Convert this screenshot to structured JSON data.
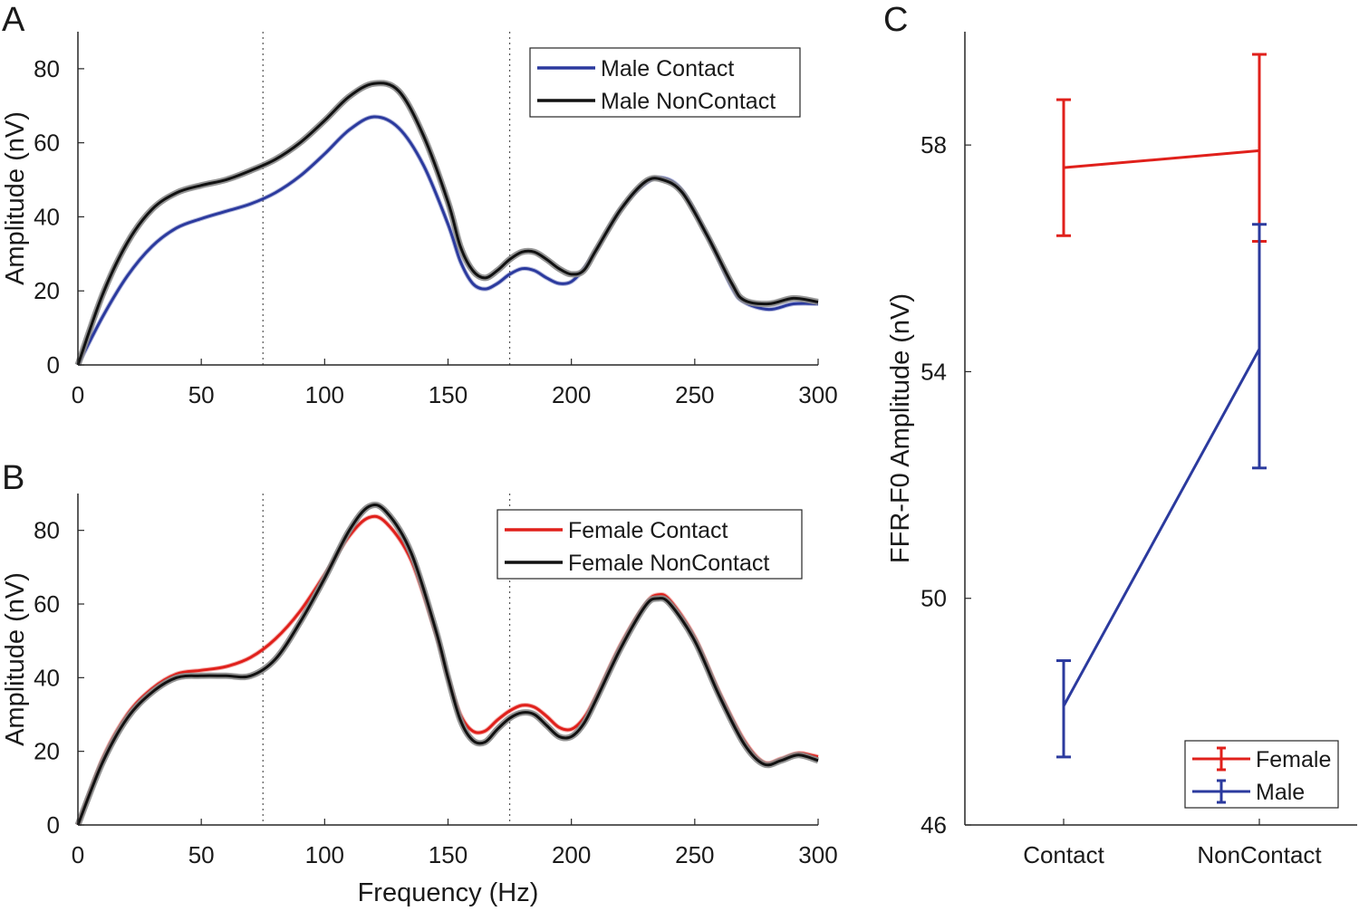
{
  "panels": {
    "a": {
      "letter": "A"
    },
    "b": {
      "letter": "B"
    },
    "c": {
      "letter": "C"
    }
  },
  "chart_data": [
    {
      "id": "a",
      "type": "line",
      "xlabel": "",
      "ylabel": "Amplitude (nV)",
      "xlim": [
        0,
        300
      ],
      "ylim": [
        0,
        90
      ],
      "xticks": [
        0,
        50,
        100,
        150,
        200,
        250,
        300
      ],
      "yticks": [
        0,
        20,
        40,
        60,
        80
      ],
      "vlines": [
        75,
        175
      ],
      "legend_position": "top-right",
      "series": [
        {
          "name": "Male Contact",
          "color": "#2b3a9e",
          "x": [
            0,
            10,
            20,
            30,
            40,
            50,
            60,
            70,
            80,
            90,
            100,
            110,
            120,
            130,
            140,
            150,
            155,
            160,
            165,
            170,
            175,
            180,
            185,
            190,
            195,
            200,
            205,
            210,
            220,
            230,
            237,
            245,
            255,
            265,
            270,
            280,
            290,
            300
          ],
          "y": [
            0,
            13,
            24,
            32,
            37,
            39.5,
            41.5,
            43.5,
            46.5,
            51,
            57,
            63.5,
            67,
            64,
            54,
            38,
            28,
            22,
            20.5,
            22,
            24.5,
            26,
            25.5,
            23.5,
            22,
            22.5,
            26,
            31,
            42,
            49,
            50.5,
            47,
            35,
            21,
            17,
            15,
            16.5,
            16.5
          ]
        },
        {
          "name": "Male NonContact",
          "color": "#111111",
          "x": [
            0,
            10,
            20,
            30,
            40,
            50,
            60,
            70,
            80,
            90,
            100,
            110,
            120,
            130,
            140,
            150,
            155,
            160,
            165,
            170,
            175,
            180,
            185,
            190,
            195,
            200,
            205,
            210,
            220,
            230,
            237,
            245,
            255,
            265,
            270,
            280,
            290,
            300
          ],
          "y": [
            0,
            19,
            33,
            42,
            46.5,
            48.5,
            50,
            52.5,
            55.5,
            60,
            66,
            72.5,
            76,
            74,
            62,
            44,
            32,
            25.5,
            23.5,
            25.5,
            28.5,
            30.5,
            30.5,
            28.5,
            26,
            24.5,
            25.5,
            31,
            42,
            49.5,
            50,
            46.5,
            35,
            22,
            17.5,
            16.5,
            18,
            17
          ]
        }
      ]
    },
    {
      "id": "b",
      "type": "line",
      "xlabel": "Frequency (Hz)",
      "ylabel": "Amplitude (nV)",
      "xlim": [
        0,
        300
      ],
      "ylim": [
        0,
        90
      ],
      "xticks": [
        0,
        50,
        100,
        150,
        200,
        250,
        300
      ],
      "yticks": [
        0,
        20,
        40,
        60,
        80
      ],
      "vlines": [
        75,
        175
      ],
      "legend_position": "top-right",
      "series": [
        {
          "name": "Female Contact",
          "color": "#e0201b",
          "x": [
            0,
            10,
            20,
            30,
            40,
            50,
            60,
            70,
            80,
            90,
            100,
            110,
            118,
            125,
            135,
            145,
            150,
            155,
            160,
            165,
            170,
            175,
            180,
            185,
            190,
            195,
            200,
            205,
            210,
            220,
            230,
            235,
            240,
            250,
            260,
            270,
            278,
            285,
            292,
            300
          ],
          "y": [
            0,
            18,
            30,
            37,
            41,
            42,
            43,
            45.5,
            50.5,
            58,
            68,
            78.5,
            83.5,
            82,
            72,
            52,
            40,
            30,
            25.5,
            25.5,
            28.5,
            31,
            32.5,
            32,
            29.5,
            26.5,
            26,
            29,
            35,
            49,
            60,
            62.5,
            61,
            51,
            36,
            23,
            17,
            18,
            19.5,
            18.5
          ]
        },
        {
          "name": "Female NonContact",
          "color": "#111111",
          "x": [
            0,
            10,
            20,
            30,
            40,
            50,
            60,
            70,
            80,
            90,
            100,
            110,
            118,
            125,
            135,
            145,
            150,
            155,
            160,
            165,
            170,
            175,
            180,
            185,
            190,
            195,
            200,
            205,
            210,
            220,
            230,
            235,
            240,
            250,
            260,
            270,
            278,
            285,
            292,
            300
          ],
          "y": [
            0,
            17,
            29,
            36,
            40,
            40.5,
            40.5,
            40.5,
            45,
            55,
            67,
            80,
            86.5,
            85,
            74,
            53,
            40,
            28.5,
            23,
            22.5,
            26,
            29,
            30.5,
            30,
            27,
            24,
            24,
            27.5,
            34,
            48,
            59.5,
            61.5,
            60,
            50,
            35,
            22,
            16.5,
            17.5,
            19,
            17.5
          ]
        }
      ]
    },
    {
      "id": "c",
      "type": "line",
      "xlabel": "",
      "ylabel": "FFR-F0 Amplitude (nV)",
      "categories": [
        "Contact",
        "NonContact"
      ],
      "ylim": [
        46,
        60
      ],
      "yticks": [
        46,
        50,
        54,
        58
      ],
      "legend_position": "bottom-right",
      "series": [
        {
          "name": "Female",
          "color": "#e0201b",
          "values": [
            57.6,
            57.9
          ],
          "err_low": [
            56.4,
            56.3
          ],
          "err_high": [
            58.8,
            59.6
          ]
        },
        {
          "name": "Male",
          "color": "#2b3a9e",
          "values": [
            48.1,
            54.4
          ],
          "err_low": [
            47.2,
            52.3
          ],
          "err_high": [
            48.9,
            56.6
          ]
        }
      ]
    }
  ]
}
